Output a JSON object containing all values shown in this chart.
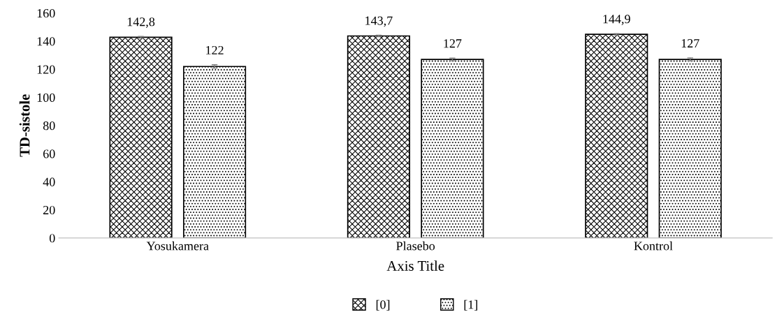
{
  "chart_data": {
    "type": "bar",
    "xlabel": "Axis Title",
    "ylabel": "TD-sistole",
    "categories": [
      "Yosukamera",
      "Plasebo",
      "Kontrol"
    ],
    "series": [
      {
        "name": "[0]",
        "color": "#000000",
        "values": [
          142.8,
          143.7,
          144.9
        ],
        "value_labels": [
          "142,8",
          "143,7",
          "144,9"
        ],
        "errors": [
          0.6,
          0.5,
          0.5
        ]
      },
      {
        "name": "[1]",
        "color": "#000000",
        "values": [
          122,
          127,
          127
        ],
        "value_labels": [
          "122",
          "127",
          "127"
        ],
        "errors": [
          1.2,
          1.0,
          1.1
        ]
      }
    ],
    "ylim": [
      0,
      160
    ],
    "yticks": [
      0,
      20,
      40,
      60,
      80,
      100,
      120,
      140,
      160
    ],
    "grid": false,
    "legend": "bottom"
  }
}
